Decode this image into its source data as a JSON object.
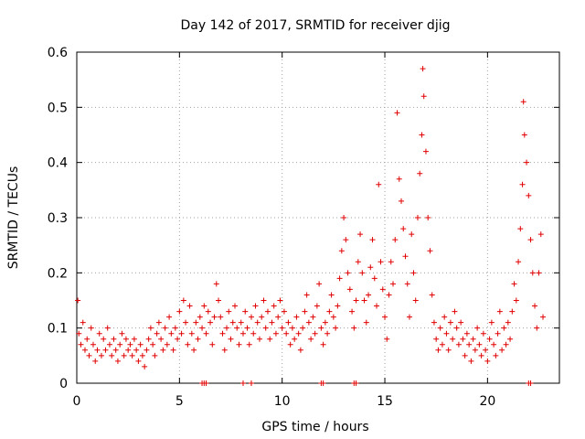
{
  "chart_data": {
    "type": "scatter",
    "title": "Day 142 of 2017, SRMTID for receiver djig",
    "xlabel": "GPS time / hours",
    "ylabel": "SRMTID / TECUs",
    "xlim": [
      0,
      23.5
    ],
    "ylim": [
      0,
      0.6
    ],
    "xticks": [
      0,
      5,
      10,
      15,
      20
    ],
    "yticks": [
      0,
      0.1,
      0.2,
      0.3,
      0.4,
      0.5,
      0.6
    ],
    "ytick_labels": [
      "0",
      "0.1",
      "0.2",
      "0.3",
      "0.4",
      "0.5",
      "0.6"
    ],
    "grid": true,
    "marker": "+",
    "color": "#e00000",
    "series": [
      {
        "name": "SRMTID",
        "points": [
          [
            0.05,
            0.15
          ],
          [
            0.1,
            0.09
          ],
          [
            0.2,
            0.07
          ],
          [
            0.3,
            0.11
          ],
          [
            0.4,
            0.06
          ],
          [
            0.5,
            0.08
          ],
          [
            0.6,
            0.05
          ],
          [
            0.7,
            0.1
          ],
          [
            0.8,
            0.07
          ],
          [
            0.9,
            0.04
          ],
          [
            1.0,
            0.06
          ],
          [
            1.1,
            0.09
          ],
          [
            1.2,
            0.05
          ],
          [
            1.3,
            0.08
          ],
          [
            1.4,
            0.06
          ],
          [
            1.5,
            0.1
          ],
          [
            1.6,
            0.07
          ],
          [
            1.7,
            0.05
          ],
          [
            1.8,
            0.08
          ],
          [
            1.9,
            0.06
          ],
          [
            2.0,
            0.04
          ],
          [
            2.1,
            0.07
          ],
          [
            2.2,
            0.09
          ],
          [
            2.3,
            0.05
          ],
          [
            2.4,
            0.08
          ],
          [
            2.5,
            0.06
          ],
          [
            2.6,
            0.07
          ],
          [
            2.7,
            0.05
          ],
          [
            2.8,
            0.08
          ],
          [
            2.9,
            0.06
          ],
          [
            3.0,
            0.04
          ],
          [
            3.1,
            0.07
          ],
          [
            3.2,
            0.05
          ],
          [
            3.3,
            0.03
          ],
          [
            3.4,
            0.06
          ],
          [
            3.5,
            0.08
          ],
          [
            3.6,
            0.1
          ],
          [
            3.7,
            0.07
          ],
          [
            3.8,
            0.05
          ],
          [
            3.9,
            0.09
          ],
          [
            4.0,
            0.11
          ],
          [
            4.1,
            0.08
          ],
          [
            4.2,
            0.06
          ],
          [
            4.3,
            0.1
          ],
          [
            4.4,
            0.07
          ],
          [
            4.5,
            0.12
          ],
          [
            4.6,
            0.09
          ],
          [
            4.7,
            0.06
          ],
          [
            4.8,
            0.1
          ],
          [
            4.9,
            0.08
          ],
          [
            5.0,
            0.13
          ],
          [
            5.1,
            0.09
          ],
          [
            5.2,
            0.15
          ],
          [
            5.3,
            0.11
          ],
          [
            5.4,
            0.07
          ],
          [
            5.5,
            0.14
          ],
          [
            5.6,
            0.09
          ],
          [
            5.7,
            0.06
          ],
          [
            5.8,
            0.11
          ],
          [
            5.9,
            0.08
          ],
          [
            6.0,
            0.12
          ],
          [
            6.1,
            0.1
          ],
          [
            6.2,
            0.14
          ],
          [
            6.3,
            0.09
          ],
          [
            6.4,
            0.13
          ],
          [
            6.5,
            0.11
          ],
          [
            6.6,
            0.07
          ],
          [
            6.7,
            0.12
          ],
          [
            6.8,
            0.18
          ],
          [
            6.9,
            0.15
          ],
          [
            7.0,
            0.12
          ],
          [
            7.1,
            0.09
          ],
          [
            7.2,
            0.06
          ],
          [
            7.3,
            0.1
          ],
          [
            7.4,
            0.13
          ],
          [
            7.5,
            0.08
          ],
          [
            7.6,
            0.11
          ],
          [
            7.7,
            0.14
          ],
          [
            7.8,
            0.1
          ],
          [
            7.9,
            0.07
          ],
          [
            8.0,
            0.11
          ],
          [
            8.1,
            0.09
          ],
          [
            8.2,
            0.13
          ],
          [
            8.3,
            0.1
          ],
          [
            8.4,
            0.07
          ],
          [
            8.5,
            0.12
          ],
          [
            8.6,
            0.09
          ],
          [
            8.7,
            0.14
          ],
          [
            8.8,
            0.11
          ],
          [
            8.9,
            0.08
          ],
          [
            9.0,
            0.12
          ],
          [
            9.1,
            0.15
          ],
          [
            9.2,
            0.1
          ],
          [
            9.3,
            0.13
          ],
          [
            9.4,
            0.08
          ],
          [
            9.5,
            0.11
          ],
          [
            9.6,
            0.14
          ],
          [
            9.7,
            0.09
          ],
          [
            9.8,
            0.12
          ],
          [
            9.9,
            0.15
          ],
          [
            10.0,
            0.1
          ],
          [
            10.1,
            0.13
          ],
          [
            10.2,
            0.09
          ],
          [
            10.3,
            0.11
          ],
          [
            10.4,
            0.07
          ],
          [
            10.5,
            0.1
          ],
          [
            10.6,
            0.08
          ],
          [
            10.7,
            0.12
          ],
          [
            10.8,
            0.09
          ],
          [
            10.9,
            0.06
          ],
          [
            11.0,
            0.1
          ],
          [
            11.1,
            0.13
          ],
          [
            11.2,
            0.16
          ],
          [
            11.3,
            0.11
          ],
          [
            11.4,
            0.08
          ],
          [
            11.5,
            0.12
          ],
          [
            11.6,
            0.09
          ],
          [
            11.7,
            0.14
          ],
          [
            11.8,
            0.18
          ],
          [
            11.9,
            0.1
          ],
          [
            12.0,
            0.07
          ],
          [
            12.1,
            0.11
          ],
          [
            12.2,
            0.09
          ],
          [
            12.3,
            0.13
          ],
          [
            12.4,
            0.16
          ],
          [
            12.5,
            0.12
          ],
          [
            12.6,
            0.1
          ],
          [
            12.7,
            0.14
          ],
          [
            12.8,
            0.19
          ],
          [
            12.9,
            0.24
          ],
          [
            13.0,
            0.3
          ],
          [
            13.1,
            0.26
          ],
          [
            13.2,
            0.2
          ],
          [
            13.3,
            0.17
          ],
          [
            13.4,
            0.13
          ],
          [
            13.5,
            0.1
          ],
          [
            13.6,
            0.15
          ],
          [
            13.7,
            0.22
          ],
          [
            13.8,
            0.27
          ],
          [
            13.9,
            0.2
          ],
          [
            14.0,
            0.15
          ],
          [
            14.1,
            0.11
          ],
          [
            14.2,
            0.16
          ],
          [
            14.3,
            0.21
          ],
          [
            14.4,
            0.26
          ],
          [
            14.5,
            0.19
          ],
          [
            14.6,
            0.14
          ],
          [
            14.7,
            0.36
          ],
          [
            14.8,
            0.22
          ],
          [
            14.9,
            0.17
          ],
          [
            15.0,
            0.12
          ],
          [
            15.1,
            0.08
          ],
          [
            15.2,
            0.16
          ],
          [
            15.3,
            0.22
          ],
          [
            15.4,
            0.18
          ],
          [
            15.5,
            0.26
          ],
          [
            15.6,
            0.49
          ],
          [
            15.7,
            0.37
          ],
          [
            15.8,
            0.33
          ],
          [
            15.9,
            0.28
          ],
          [
            16.0,
            0.23
          ],
          [
            16.1,
            0.18
          ],
          [
            16.2,
            0.12
          ],
          [
            16.3,
            0.27
          ],
          [
            16.4,
            0.2
          ],
          [
            16.5,
            0.15
          ],
          [
            16.6,
            0.3
          ],
          [
            16.7,
            0.38
          ],
          [
            16.8,
            0.45
          ],
          [
            16.85,
            0.57
          ],
          [
            16.9,
            0.52
          ],
          [
            17.0,
            0.42
          ],
          [
            17.1,
            0.3
          ],
          [
            17.2,
            0.24
          ],
          [
            17.3,
            0.16
          ],
          [
            17.4,
            0.11
          ],
          [
            17.5,
            0.08
          ],
          [
            17.6,
            0.06
          ],
          [
            17.7,
            0.1
          ],
          [
            17.8,
            0.07
          ],
          [
            17.9,
            0.12
          ],
          [
            18.0,
            0.09
          ],
          [
            18.1,
            0.06
          ],
          [
            18.2,
            0.11
          ],
          [
            18.3,
            0.08
          ],
          [
            18.4,
            0.13
          ],
          [
            18.5,
            0.1
          ],
          [
            18.6,
            0.07
          ],
          [
            18.7,
            0.11
          ],
          [
            18.8,
            0.08
          ],
          [
            18.9,
            0.05
          ],
          [
            19.0,
            0.09
          ],
          [
            19.1,
            0.07
          ],
          [
            19.2,
            0.04
          ],
          [
            19.3,
            0.08
          ],
          [
            19.4,
            0.06
          ],
          [
            19.5,
            0.1
          ],
          [
            19.6,
            0.07
          ],
          [
            19.7,
            0.05
          ],
          [
            19.8,
            0.09
          ],
          [
            19.9,
            0.06
          ],
          [
            20.0,
            0.04
          ],
          [
            20.1,
            0.08
          ],
          [
            20.2,
            0.11
          ],
          [
            20.3,
            0.07
          ],
          [
            20.4,
            0.05
          ],
          [
            20.5,
            0.09
          ],
          [
            20.6,
            0.13
          ],
          [
            20.7,
            0.06
          ],
          [
            20.8,
            0.1
          ],
          [
            20.9,
            0.07
          ],
          [
            21.0,
            0.11
          ],
          [
            21.1,
            0.08
          ],
          [
            21.2,
            0.13
          ],
          [
            21.3,
            0.18
          ],
          [
            21.4,
            0.15
          ],
          [
            21.5,
            0.22
          ],
          [
            21.6,
            0.28
          ],
          [
            21.7,
            0.36
          ],
          [
            21.75,
            0.51
          ],
          [
            21.8,
            0.45
          ],
          [
            21.9,
            0.4
          ],
          [
            22.0,
            0.34
          ],
          [
            22.1,
            0.26
          ],
          [
            22.2,
            0.2
          ],
          [
            22.3,
            0.14
          ],
          [
            22.4,
            0.1
          ],
          [
            22.5,
            0.2
          ],
          [
            22.6,
            0.27
          ],
          [
            22.7,
            0.12
          ]
        ]
      }
    ],
    "baseline_markers": [
      6.1,
      6.2,
      6.3,
      8.1,
      8.5,
      11.9,
      12.0,
      13.5,
      13.6,
      22.0,
      22.1
    ]
  }
}
